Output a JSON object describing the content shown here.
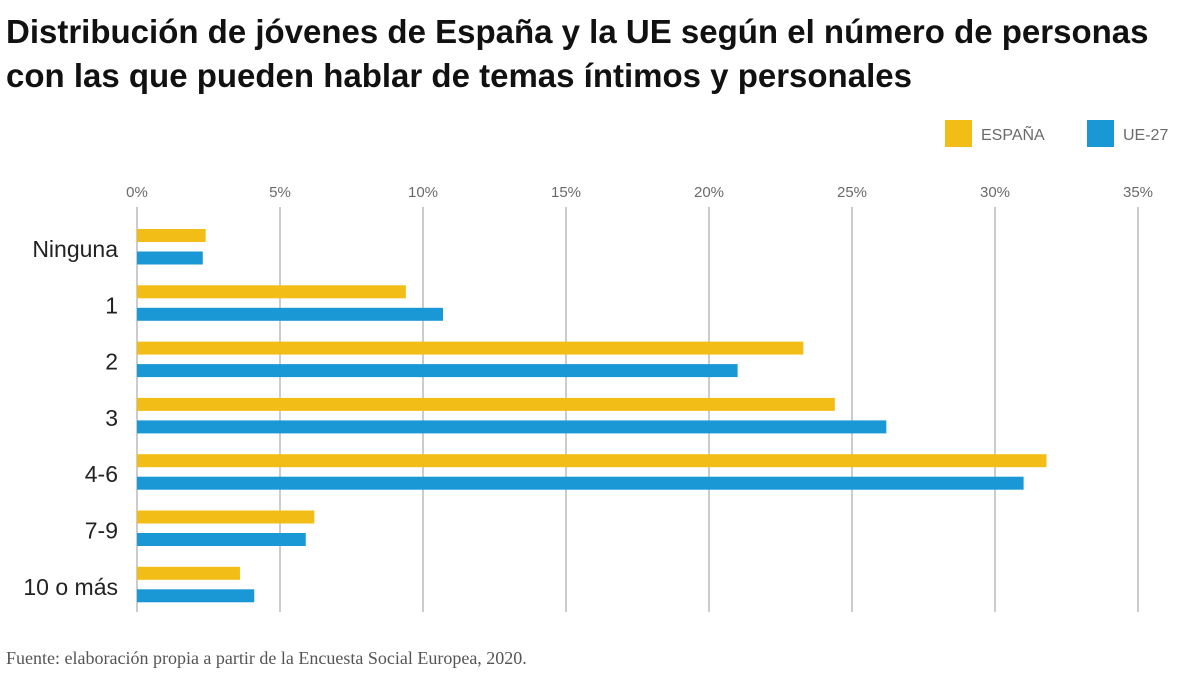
{
  "title": "Distribución de jóvenes de España y la UE según el número de personas con las que pueden hablar de temas íntimos y personales",
  "source": "Fuente: elaboración propia a partir de la Encuesta Social Europea, 2020.",
  "chart_data": {
    "type": "bar",
    "orientation": "horizontal",
    "title": "Distribución de jóvenes de España y la UE según el número de personas con las que pueden hablar de temas íntimos y personales",
    "categories": [
      "Ninguna",
      "1",
      "2",
      "3",
      "4-6",
      "7-9",
      "10 o más"
    ],
    "series": [
      {
        "name": "ESPAÑA",
        "color": "#f2bd16",
        "values": [
          2.4,
          9.4,
          23.3,
          24.4,
          31.8,
          6.2,
          3.6
        ]
      },
      {
        "name": "UE-27",
        "color": "#1a98d6",
        "values": [
          2.3,
          10.7,
          21.0,
          26.2,
          31.0,
          5.9,
          4.1
        ]
      }
    ],
    "xlim": [
      0,
      35
    ],
    "x_ticks": [
      0,
      5,
      10,
      15,
      20,
      25,
      30,
      35
    ],
    "x_tick_labels": [
      "0%",
      "5%",
      "10%",
      "15%",
      "20%",
      "25%",
      "30%",
      "35%"
    ],
    "x_tick_position": "top",
    "grid": true,
    "legend_position": "top-right"
  }
}
